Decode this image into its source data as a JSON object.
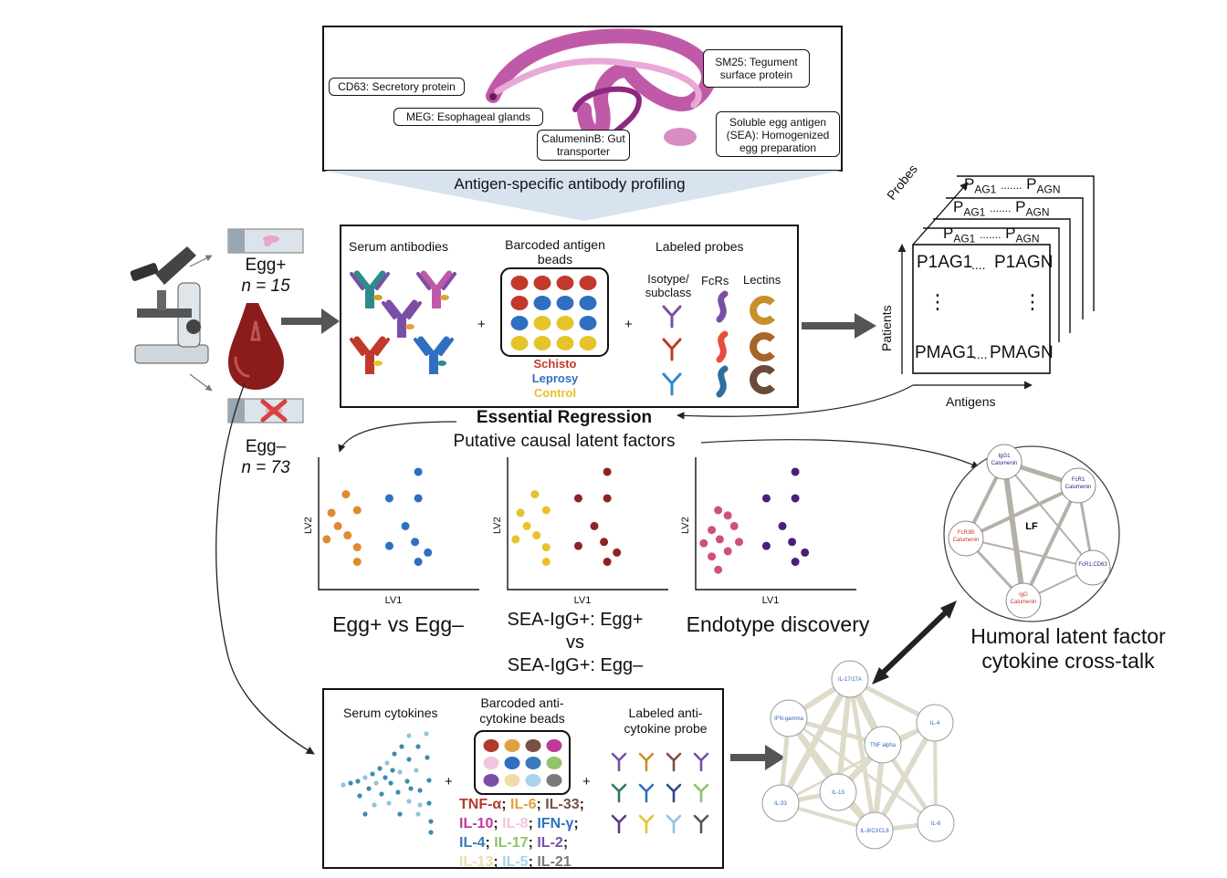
{
  "parasite": {
    "callouts": [
      "CD63: Secretory protein",
      "MEG: Esophageal glands",
      "CalumeninB: Gut transporter",
      "SM25: Tegument surface protein",
      "Soluble egg antigen (SEA): Homogenized egg preparation"
    ],
    "caption": "Antigen-specific antibody profiling"
  },
  "samples": {
    "egg_pos_label": "Egg+",
    "egg_pos_n": "n = 15",
    "egg_neg_label": "Egg–",
    "egg_neg_n": "n = 73"
  },
  "assay": {
    "serum_antibodies": "Serum antibodies",
    "barcoded_beads": "Barcoded antigen beads",
    "labeled_probes": "Labeled probes",
    "isotype": "Isotype/ subclass",
    "fcrs": "FcRs",
    "lectins": "Lectins",
    "legend": [
      "Schisto",
      "Leprosy",
      "Control"
    ],
    "colors": {
      "schisto": "#c0392b",
      "leprosy": "#2f6fc0",
      "control": "#e6c429"
    },
    "plus": "+"
  },
  "tensor": {
    "probes_label": "Probes",
    "patients_label": "Patients",
    "antigens_label": "Antigens",
    "layer_row": [
      "P",
      "AG1",
      ".......",
      "P",
      "AGN"
    ],
    "cell_tl": "P1AG1",
    "cell_tr": "P1AGN",
    "cell_bl": "PMAG1",
    "cell_br": "PMAGN",
    "dots_h": "....",
    "dots_v": "⋮"
  },
  "er": {
    "title": "Essential Regression",
    "subtitle": "Putative causal latent factors"
  },
  "scatter": {
    "xlabel": "LV1",
    "ylabel": "LV2",
    "captions": [
      "Egg+ vs Egg–",
      "SEA-IgG+: Egg+",
      "vs",
      "SEA-IgG+: Egg–",
      "Endotype discovery"
    ]
  },
  "lf_network": {
    "center": "LF",
    "nodes": [
      "IgG1 Calumenin",
      "FcR1 Calumenin",
      "FcR3B Calumenin",
      "FcR1.CD63",
      "IgG Calumenin"
    ],
    "caption": [
      "Humoral latent factor",
      "cytokine cross-talk"
    ]
  },
  "cytokine_assay": {
    "serum_cytokines": "Serum cytokines",
    "beads": "Barcoded anti-cytokine beads",
    "probe": "Labeled anti-cytokine probe",
    "plus": "+",
    "cytokines": [
      {
        "name": "TNF-α",
        "color": "#b03a2e"
      },
      {
        "name": "IL-6",
        "color": "#e0a040"
      },
      {
        "name": "IL-33",
        "color": "#7a5140"
      },
      {
        "name": "IL-10",
        "color": "#c0399b"
      },
      {
        "name": "IL-8",
        "color": "#f0c6e0"
      },
      {
        "name": "IFN-γ",
        "color": "#2f6fc0"
      },
      {
        "name": "IL-4",
        "color": "#3a79b8"
      },
      {
        "name": "IL-17",
        "color": "#8fc46b"
      },
      {
        "name": "IL-2",
        "color": "#7b4ea6"
      },
      {
        "name": "IL-13",
        "color": "#f0dca8"
      },
      {
        "name": "IL-5",
        "color": "#a8d4ec"
      },
      {
        "name": "IL-21",
        "color": "#7a7a7a"
      }
    ]
  },
  "cyto_network": {
    "nodes": [
      "IL-17/17A",
      "IFN-gamma",
      "IL-4",
      "TNF alpha",
      "IL-13",
      "IL-33",
      "IL-8/CXCL8",
      "IL-6"
    ]
  }
}
